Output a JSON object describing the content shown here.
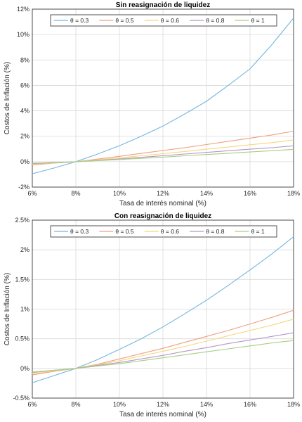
{
  "chart_data": [
    {
      "type": "line",
      "title": "Sin reasignación de liquidez",
      "xlabel": "Tasa de interés nominal (%)",
      "ylabel": "Costos de Inflación (%)",
      "x": [
        6,
        7,
        8,
        9,
        10,
        11,
        12,
        13,
        14,
        15,
        16,
        17,
        18
      ],
      "xlim": [
        6,
        18
      ],
      "ylim": [
        -2,
        12
      ],
      "xticks": [
        6,
        8,
        10,
        12,
        14,
        16,
        18
      ],
      "xtick_labels": [
        "6%",
        "8%",
        "10%",
        "12%",
        "14%",
        "16%",
        "18%"
      ],
      "yticks": [
        -2,
        0,
        2,
        4,
        6,
        8,
        10,
        12
      ],
      "ytick_labels": [
        "-2%",
        "0%",
        "2%",
        "4%",
        "6%",
        "8%",
        "10%",
        "12%"
      ],
      "grid": true,
      "legend_position": "top",
      "series": [
        {
          "name": "θ = 0.3",
          "color": "#72b6e0",
          "values": [
            -0.95,
            -0.5,
            0,
            0.6,
            1.25,
            2.0,
            2.8,
            3.75,
            4.75,
            6.0,
            7.3,
            9.2,
            11.3
          ]
        },
        {
          "name": "θ = 0.5",
          "color": "#ef9f7e",
          "values": [
            -0.25,
            -0.12,
            0,
            0.2,
            0.42,
            0.65,
            0.88,
            1.1,
            1.35,
            1.6,
            1.85,
            2.1,
            2.4
          ]
        },
        {
          "name": "θ = 0.6",
          "color": "#f7d77a",
          "values": [
            -0.2,
            -0.1,
            0,
            0.14,
            0.3,
            0.46,
            0.63,
            0.8,
            0.98,
            1.15,
            1.33,
            1.5,
            1.7
          ]
        },
        {
          "name": "θ = 0.8",
          "color": "#b596cc",
          "values": [
            -0.15,
            -0.08,
            0,
            0.1,
            0.22,
            0.34,
            0.47,
            0.6,
            0.73,
            0.86,
            0.98,
            1.1,
            1.25
          ]
        },
        {
          "name": "θ = 1",
          "color": "#a6cf82",
          "values": [
            -0.12,
            -0.06,
            0,
            0.08,
            0.17,
            0.26,
            0.36,
            0.46,
            0.56,
            0.66,
            0.76,
            0.86,
            0.97
          ]
        }
      ]
    },
    {
      "type": "line",
      "title": "Con reasignación de liquidez",
      "xlabel": "Tasa de interés nominal (%)",
      "ylabel": "Costos de Inflación (%)",
      "x": [
        6,
        7,
        8,
        9,
        10,
        11,
        12,
        13,
        14,
        15,
        16,
        17,
        18
      ],
      "xlim": [
        6,
        18
      ],
      "ylim": [
        -0.5,
        2.5
      ],
      "xticks": [
        6,
        8,
        10,
        12,
        14,
        16,
        18
      ],
      "xtick_labels": [
        "6%",
        "8%",
        "10%",
        "12%",
        "14%",
        "16%",
        "18%"
      ],
      "yticks": [
        -0.5,
        0,
        0.5,
        1,
        1.5,
        2,
        2.5
      ],
      "ytick_labels": [
        "-0.5%",
        "0%",
        "0.5%",
        "1%",
        "1.5%",
        "2%",
        "2.5%"
      ],
      "grid": true,
      "legend_position": "top",
      "series": [
        {
          "name": "θ = 0.3",
          "color": "#72b6e0",
          "values": [
            -0.24,
            -0.12,
            0,
            0.15,
            0.32,
            0.5,
            0.7,
            0.92,
            1.15,
            1.4,
            1.66,
            1.93,
            2.22
          ]
        },
        {
          "name": "θ = 0.5",
          "color": "#ef9f7e",
          "values": [
            -0.11,
            -0.05,
            0,
            0.07,
            0.16,
            0.25,
            0.34,
            0.44,
            0.54,
            0.64,
            0.75,
            0.86,
            0.98
          ]
        },
        {
          "name": "θ = 0.6",
          "color": "#f7d77a",
          "values": [
            -0.09,
            -0.04,
            0,
            0.06,
            0.13,
            0.21,
            0.29,
            0.37,
            0.46,
            0.55,
            0.64,
            0.73,
            0.83
          ]
        },
        {
          "name": "θ = 0.8",
          "color": "#b596cc",
          "values": [
            -0.07,
            -0.03,
            0,
            0.05,
            0.1,
            0.16,
            0.22,
            0.29,
            0.35,
            0.42,
            0.48,
            0.54,
            0.6
          ]
        },
        {
          "name": "θ = 1",
          "color": "#a6cf82",
          "values": [
            -0.06,
            -0.03,
            0,
            0.04,
            0.08,
            0.13,
            0.18,
            0.23,
            0.28,
            0.33,
            0.38,
            0.43,
            0.47
          ]
        }
      ]
    }
  ]
}
